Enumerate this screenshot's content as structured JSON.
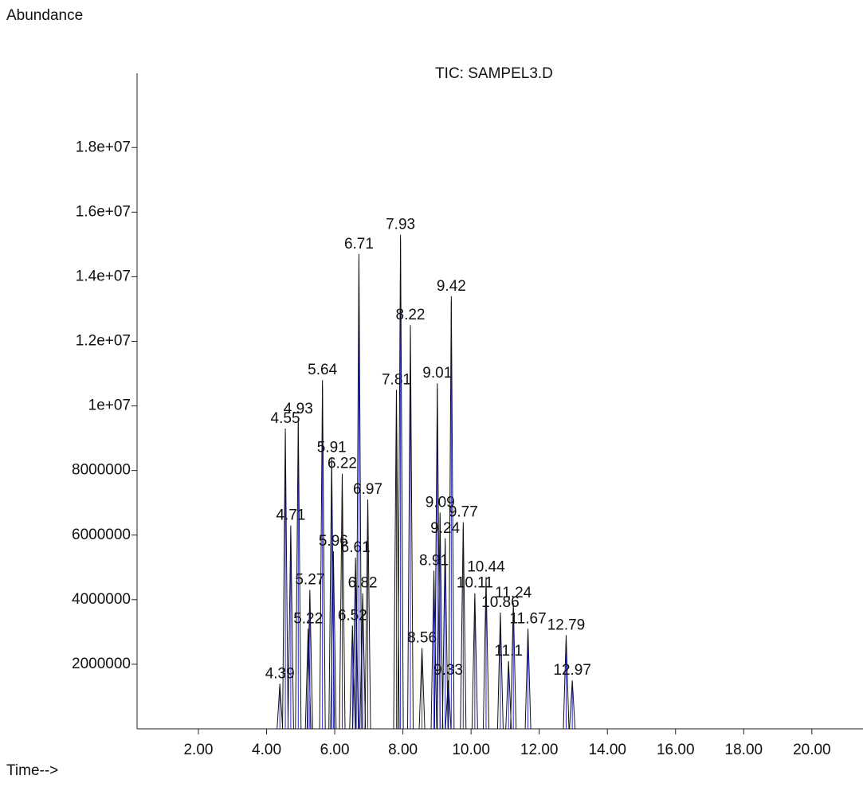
{
  "chart_data": {
    "type": "line",
    "title": "TIC: SAMPEL3.D",
    "y_label": "Abundance",
    "x_label": "Time-->",
    "color": "#111111",
    "x": [
      4.39,
      4.55,
      4.71,
      4.93,
      5.22,
      5.27,
      5.64,
      5.91,
      5.96,
      6.22,
      6.52,
      6.61,
      6.71,
      6.82,
      6.97,
      7.81,
      7.93,
      8.22,
      8.56,
      8.91,
      9.01,
      9.09,
      9.24,
      9.33,
      9.42,
      9.77,
      10.11,
      10.44,
      10.86,
      11.1,
      11.24,
      11.67,
      12.79,
      12.97
    ],
    "values": [
      1400000,
      9300000,
      6300000,
      9600000,
      3100000,
      4300000,
      10800000,
      8400000,
      5500000,
      7900000,
      3200000,
      5300000,
      14700000,
      4200000,
      7100000,
      10500000,
      15300000,
      12500000,
      2500000,
      4900000,
      10700000,
      6700000,
      5900000,
      1500000,
      13400000,
      6400000,
      4200000,
      4700000,
      3600000,
      2100000,
      3900000,
      3100000,
      2900000,
      1500000
    ],
    "xlim": [
      0.2,
      21.5
    ],
    "ylim": [
      0,
      20300000
    ],
    "xticks": [
      {
        "value": 2,
        "label": "2.00"
      },
      {
        "value": 4,
        "label": "4.00"
      },
      {
        "value": 6,
        "label": "6.00"
      },
      {
        "value": 8,
        "label": "8.00"
      },
      {
        "value": 10,
        "label": "10.00"
      },
      {
        "value": 12,
        "label": "12.00"
      },
      {
        "value": 14,
        "label": "14.00"
      },
      {
        "value": 16,
        "label": "16.00"
      },
      {
        "value": 18,
        "label": "18.00"
      },
      {
        "value": 20,
        "label": "20.00"
      }
    ],
    "yticks": [
      2000000,
      4000000,
      6000000,
      8000000,
      {
        "value": 10000000,
        "label": "1e+07"
      },
      {
        "value": 12000000,
        "label": "1.2e+07"
      },
      {
        "value": 14000000,
        "label": "1.4e+07"
      },
      {
        "value": 16000000,
        "label": "1.6e+07"
      },
      {
        "value": 18000000,
        "label": "1.8e+07"
      }
    ]
  }
}
